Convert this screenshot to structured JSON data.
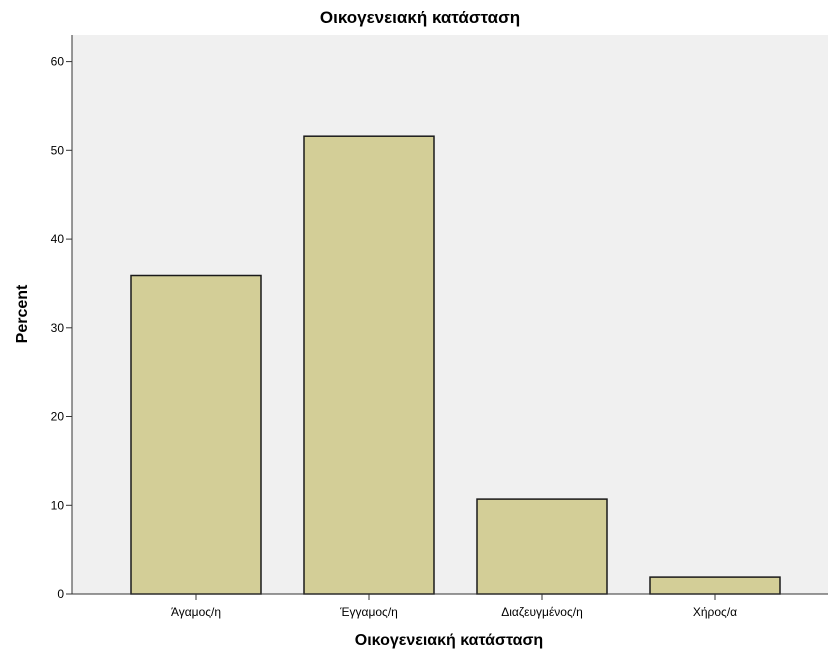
{
  "colors": {
    "plot_background": "#f0f0f0",
    "bar_fill": "#d3ce97",
    "bar_stroke": "#1a1a1a",
    "axis": "#333333"
  },
  "chart_data": {
    "type": "bar",
    "title": "Οικογενειακή κατάσταση",
    "xlabel": "Οικογενειακή κατάσταση",
    "ylabel": "Percent",
    "categories": [
      "Άγαμος/η",
      "Έγγαμος/η",
      "Διαζευγμένος/η",
      "Χήρος/α"
    ],
    "values": [
      35.9,
      51.6,
      10.7,
      1.9
    ],
    "ylim": [
      0,
      63
    ],
    "yticks": [
      0,
      10,
      20,
      30,
      40,
      50,
      60
    ],
    "grid": false,
    "legend": "none"
  }
}
